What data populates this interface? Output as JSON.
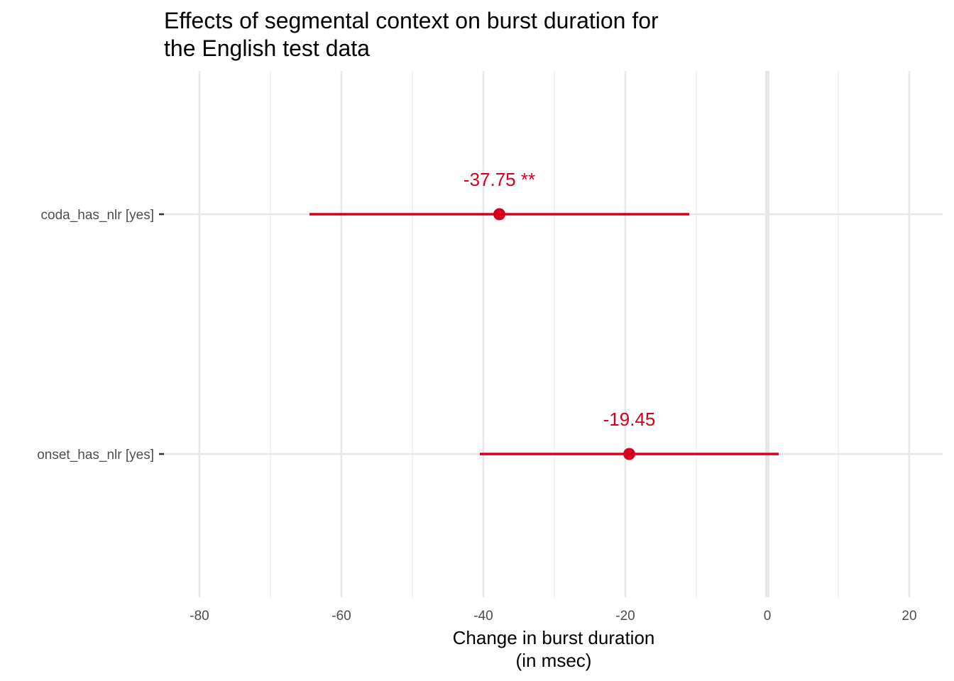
{
  "chart_data": {
    "type": "forest-plot",
    "title_lines": [
      "Effects of segmental context on burst duration for",
      "the English test data"
    ],
    "xlabel_lines": [
      "Change in burst duration",
      "(in msec)"
    ],
    "ylabel": "",
    "xlim": [
      -90,
      25
    ],
    "x_ticks": [
      -80,
      -60,
      -40,
      -20,
      0,
      20
    ],
    "x_tick_labels": [
      "-80",
      "-60",
      "-40",
      "-20",
      "0",
      "20"
    ],
    "x_minor_ticks": [
      -70,
      -50,
      -30,
      -10,
      10
    ],
    "reference_line": 0,
    "grid": true,
    "color": "#d7001c",
    "series": [
      {
        "term": "coda_has_nlr [yes]",
        "estimate": -37.75,
        "ci_low": -64.5,
        "ci_high": -11.0,
        "label": "-37.75 **"
      },
      {
        "term": "onset_has_nlr [yes]",
        "estimate": -19.45,
        "ci_low": -40.5,
        "ci_high": 1.6,
        "label": "-19.45"
      }
    ]
  }
}
